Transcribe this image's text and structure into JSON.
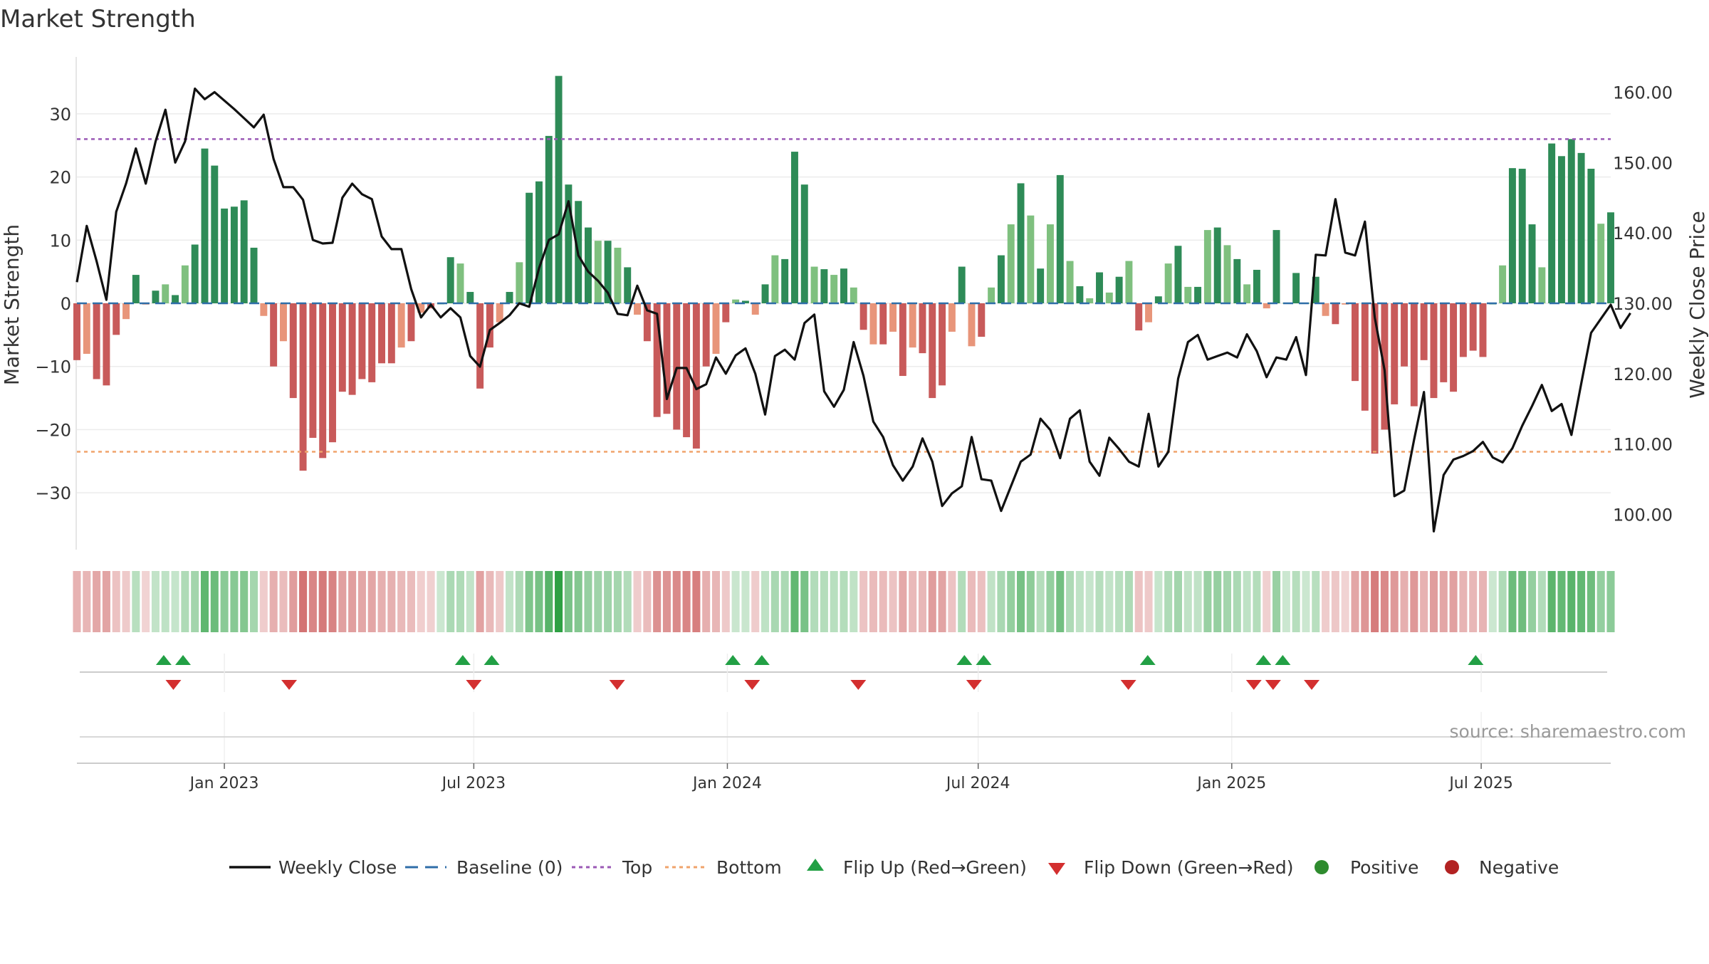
{
  "title": "Market Strength",
  "source": "source: sharemaestro.com",
  "colors": {
    "line": "#111111",
    "baseline": "#2f6ea8",
    "top": "#9b59b6",
    "bottom": "#f0a36b",
    "pos_strong": "#2e8b57",
    "pos_weak": "#7fc07f",
    "neg_strong": "#c85a5a",
    "neg_weak": "#e8957a",
    "flip_up": "#22a045",
    "flip_down": "#d32f2f",
    "positive": "#2e8b2e",
    "negative": "#b22222"
  },
  "chart_data": {
    "type": "bar",
    "title": "Market Strength",
    "ylabel": "Market Strength",
    "y2label": "Weekly Close Price",
    "ylim": [
      -39,
      39
    ],
    "y2lim": [
      95,
      165
    ],
    "y_ticks": [
      30,
      20,
      10,
      0,
      -10,
      -20,
      -30
    ],
    "y_tick_labels": [
      "30",
      "20",
      "10",
      "0",
      "−10",
      "−20",
      "−30"
    ],
    "y2_ticks": [
      160,
      150,
      140,
      130,
      120,
      110,
      100
    ],
    "y2_tick_labels": [
      "160.00",
      "150.00",
      "140.00",
      "130.00",
      "120.00",
      "110.00",
      "100.00"
    ],
    "x_start": "2022-09-16",
    "x_end": "2025-10-03",
    "x_ticks": [
      "2023-01-01",
      "2023-07-01",
      "2024-01-01",
      "2024-07-01",
      "2025-01-01",
      "2025-07-01"
    ],
    "x_tick_labels": [
      "Jan 2023",
      "Jul 2023",
      "Jan 2024",
      "Jul 2024",
      "Jan 2025",
      "Jul 2025"
    ],
    "top_level": 26,
    "bottom_level": -23.5,
    "baseline": 0,
    "strength": [
      -9,
      -8,
      -12,
      -13,
      -5,
      -2.5,
      4.5,
      -0.2,
      2,
      3,
      1.3,
      6,
      9.3,
      24.5,
      21.8,
      15,
      15.3,
      16.3,
      8.8,
      -2,
      -10,
      -6,
      -15,
      -26.5,
      -21.3,
      -24.5,
      -22,
      -14,
      -14.5,
      -12,
      -12.5,
      -9.5,
      -9.5,
      -7,
      -6,
      -1.5,
      -0.8,
      0,
      7.3,
      6.3,
      1.8,
      -13.5,
      -7,
      -3,
      1.8,
      6.5,
      17.5,
      19.3,
      26.5,
      36,
      18.8,
      16.2,
      12,
      9.9,
      9.9,
      8.8,
      5.7,
      -1.8,
      -6,
      -18,
      -17.5,
      -20,
      -21.2,
      -23,
      -10,
      -8,
      -3,
      0.6,
      0.4,
      -1.8,
      3,
      7.6,
      7,
      24,
      18.8,
      5.8,
      5.4,
      4.5,
      5.5,
      2.5,
      -4.2,
      -6.5,
      -6.5,
      -4.5,
      -11.5,
      -7,
      -7.9,
      -15,
      -13,
      -4.5,
      5.8,
      -6.8,
      -5.3,
      2.5,
      7.6,
      12.5,
      19,
      13.9,
      5.5,
      12.5,
      20.3,
      6.7,
      2.7,
      0.8,
      4.9,
      1.7,
      4.2,
      6.7,
      -4.3,
      -3,
      1.1,
      6.3,
      9.1,
      2.6,
      2.6,
      11.6,
      12,
      9.2,
      7,
      3,
      5.3,
      -0.8,
      11.6,
      0.1,
      4.8,
      0.1,
      4.2,
      -2,
      -3.3,
      -0.2,
      -12.3,
      -17,
      -23.8,
      -20,
      -16,
      -10,
      -16.3,
      -9,
      -15,
      -12.5,
      -14,
      -8.5,
      -7.5,
      -8.5,
      0,
      6,
      21.4,
      21.3,
      12.5,
      5.7,
      25.3,
      23.3,
      26,
      23.8,
      21.3,
      12.6,
      14.4
    ],
    "close": [
      133,
      141,
      136,
      130.5,
      143,
      147,
      152,
      147,
      153,
      157.5,
      150,
      153,
      160.5,
      159,
      160,
      158.8,
      157.6,
      156.3,
      155,
      156.8,
      150.5,
      146.5,
      146.5,
      144.7,
      139,
      138.5,
      138.6,
      145,
      147,
      145.5,
      144.8,
      139.5,
      137.7,
      137.7,
      132,
      128,
      129.8,
      128,
      129.3,
      128,
      122.5,
      121,
      126.2,
      127.2,
      128.3,
      130,
      129.5,
      135,
      139,
      139.8,
      144.5,
      136.8,
      134.5,
      133.2,
      131.5,
      128.5,
      128.3,
      132.5,
      129,
      128.5,
      116.4,
      120.8,
      120.8,
      117.8,
      118.5,
      122.3,
      120,
      122.6,
      123.6,
      120,
      114.2,
      122.5,
      123.4,
      122,
      127.2,
      128.4,
      117.5,
      115.3,
      117.7,
      124.5,
      119.7,
      113.2,
      111,
      107,
      104.8,
      106.8,
      110.8,
      107.5,
      101.2,
      103,
      104,
      111,
      105,
      104.8,
      100.5,
      104,
      107.5,
      108.5,
      113.6,
      112,
      108,
      113.6,
      114.8,
      107.5,
      105.5,
      110.9,
      109.3,
      107.5,
      106.8,
      114.3,
      106.8,
      108.9,
      119.3,
      124.5,
      125.5,
      122,
      122.5,
      123,
      122.3,
      125.6,
      123.2,
      119.5,
      122.3,
      122,
      125.2,
      119.8,
      136.9,
      136.8,
      144.8,
      137.2,
      136.8,
      141.6,
      128,
      120.5,
      102.6,
      103.4,
      110.6,
      117.4,
      97.6,
      105.6,
      107.8,
      108.3,
      109,
      110.3,
      108.1,
      107.4,
      109.4,
      112.6,
      115.4,
      118.4,
      114.7,
      115.7,
      111.3,
      118.6,
      125.8,
      127.8,
      129.8,
      126.5,
      128.6
    ],
    "flip_up_dates": [
      "2022-11-18",
      "2022-12-02",
      "2023-06-23",
      "2023-07-14",
      "2024-01-05",
      "2024-01-26",
      "2024-06-21",
      "2024-07-05",
      "2024-11-01",
      "2025-01-24",
      "2025-02-07",
      "2025-06-27"
    ],
    "flip_down_dates": [
      "2022-11-25",
      "2023-02-17",
      "2023-07-01",
      "2023-10-13",
      "2024-01-19",
      "2024-04-05",
      "2024-06-28",
      "2024-10-18",
      "2025-01-17",
      "2025-01-31",
      "2025-02-28"
    ],
    "legend": [
      {
        "kind": "line",
        "label": "Weekly Close"
      },
      {
        "kind": "baseline",
        "label": "Baseline (0)"
      },
      {
        "kind": "top",
        "label": "Top"
      },
      {
        "kind": "bottom",
        "label": "Bottom"
      },
      {
        "kind": "up",
        "label": "Flip Up (Red→Green)"
      },
      {
        "kind": "down",
        "label": "Flip Down (Green→Red)"
      },
      {
        "kind": "pos",
        "label": "Positive"
      },
      {
        "kind": "neg",
        "label": "Negative"
      }
    ],
    "legend_position": "bottom-center",
    "grid": true
  }
}
